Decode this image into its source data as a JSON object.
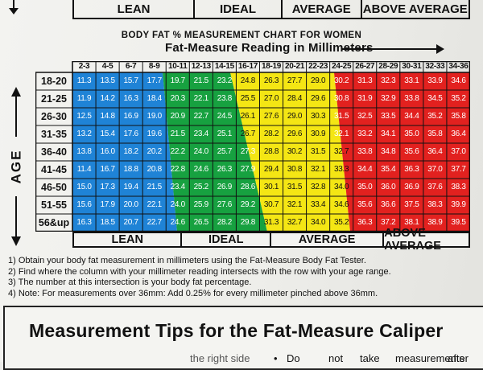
{
  "top_strip": {
    "labels": [
      "LEAN",
      "IDEAL",
      "AVERAGE",
      "ABOVE AVERAGE"
    ]
  },
  "header": {
    "title": "BODY FAT % MEASUREMENT CHART FOR WOMEN",
    "subtitle": "Fat-Measure Reading in Millimeters"
  },
  "age_axis_label": "AGE",
  "colors": {
    "blue": "#1f83d6",
    "green": "#17a140",
    "yellow": "#f4e614",
    "red": "#e2211f",
    "paper": "#efefec",
    "ink": "#111111"
  },
  "columns": [
    "2-3",
    "4-5",
    "6-7",
    "8-9",
    "10-11",
    "12-13",
    "14-15",
    "16-17",
    "18-19",
    "20-21",
    "22-23",
    "24-25",
    "26-27",
    "28-29",
    "30-31",
    "32-33",
    "34-36"
  ],
  "rows": [
    {
      "age": "18-20",
      "values": [
        "11.3",
        "13.5",
        "15.7",
        "17.7",
        "19.7",
        "21.5",
        "23.2",
        "24.8",
        "26.3",
        "27.7",
        "29.0",
        "30.2",
        "31.3",
        "32.3",
        "33.1",
        "33.9",
        "34.6"
      ]
    },
    {
      "age": "21-25",
      "values": [
        "11.9",
        "14.2",
        "16.3",
        "18.4",
        "20.3",
        "22.1",
        "23.8",
        "25.5",
        "27.0",
        "28.4",
        "29.6",
        "30.8",
        "31.9",
        "32.9",
        "33.8",
        "34.5",
        "35.2"
      ]
    },
    {
      "age": "26-30",
      "values": [
        "12.5",
        "14.8",
        "16.9",
        "19.0",
        "20.9",
        "22.7",
        "24.5",
        "26.1",
        "27.6",
        "29.0",
        "30.3",
        "31.5",
        "32.5",
        "33.5",
        "34.4",
        "35.2",
        "35.8"
      ]
    },
    {
      "age": "31-35",
      "values": [
        "13.2",
        "15.4",
        "17.6",
        "19.6",
        "21.5",
        "23.4",
        "25.1",
        "26.7",
        "28.2",
        "29.6",
        "30.9",
        "32.1",
        "33.2",
        "34.1",
        "35.0",
        "35.8",
        "36.4"
      ]
    },
    {
      "age": "36-40",
      "values": [
        "13.8",
        "16.0",
        "18.2",
        "20.2",
        "22.2",
        "24.0",
        "25.7",
        "27.3",
        "28.8",
        "30.2",
        "31.5",
        "32.7",
        "33.8",
        "34.8",
        "35.6",
        "36.4",
        "37.0"
      ]
    },
    {
      "age": "41-45",
      "values": [
        "11.4",
        "16.7",
        "18.8",
        "20.8",
        "22.8",
        "24.6",
        "26.3",
        "27.9",
        "29.4",
        "30.8",
        "32.1",
        "33.3",
        "34.4",
        "35.4",
        "36.3",
        "37.0",
        "37.7"
      ]
    },
    {
      "age": "46-50",
      "values": [
        "15.0",
        "17.3",
        "19.4",
        "21.5",
        "23.4",
        "25.2",
        "26.9",
        "28.6",
        "30.1",
        "31.5",
        "32.8",
        "34.0",
        "35.0",
        "36.0",
        "36.9",
        "37.6",
        "38.3"
      ]
    },
    {
      "age": "51-55",
      "values": [
        "15.6",
        "17.9",
        "20.0",
        "22.1",
        "24.0",
        "25.9",
        "27.6",
        "29.2",
        "30.7",
        "32.1",
        "33.4",
        "34.6",
        "35.6",
        "36.6",
        "37.5",
        "38.3",
        "39.9"
      ]
    },
    {
      "age": "56&up",
      "values": [
        "16.3",
        "18.5",
        "20.7",
        "22.7",
        "24.6",
        "26.5",
        "28.2",
        "29.8",
        "31.3",
        "32.7",
        "34.0",
        "35.2",
        "36.3",
        "37.2",
        "38.1",
        "38.9",
        "39.5"
      ]
    }
  ],
  "category_bar": [
    "LEAN",
    "IDEAL",
    "AVERAGE",
    "ABOVE AVERAGE"
  ],
  "instructions": [
    "1) Obtain your body fat measurement in millimeters using the Fat-Measure Body Fat Tester.",
    "2) Find where the column with your millimeter reading intersects with the row with your age range.",
    "3) The number at this intersection is your body fat percentage.",
    "4) Note: For measurements over 36mm: Add 0.25% for every millimeter pinched above 36mm."
  ],
  "tips": {
    "title": "Measurement Tips for the Fat-Measure Caliper",
    "frag_left": "the right side",
    "frag_bullet": "•",
    "frag_right": [
      "Do",
      "not",
      "take",
      "measurements",
      "after"
    ]
  }
}
